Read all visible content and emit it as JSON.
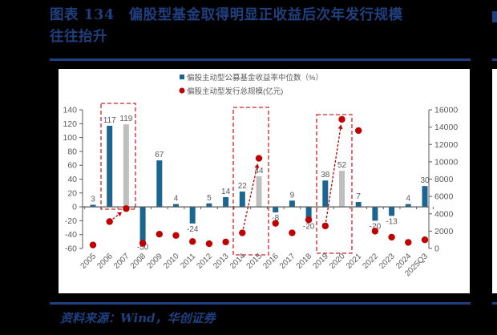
{
  "figure": {
    "title_line1": "图表 134　偏股型基金取得明显正收益后次年发行规模",
    "title_line2": "往往抬升",
    "source": "资料来源：Wind，华创证券"
  },
  "colors": {
    "bar_primary": "#1b6690",
    "bar_highlight": "#bfbfbf",
    "dot": "#c00000",
    "title": "#1f3f7f",
    "axis": "#595959",
    "box": "#d0202a"
  },
  "chart_data": {
    "type": "bar",
    "title": "偏股型基金取得明显正收益后次年发行规模往往抬升",
    "categories": [
      "2005",
      "2006",
      "2007",
      "2008",
      "2009",
      "2010",
      "2011",
      "2012",
      "2013",
      "2014",
      "2015",
      "2016",
      "2017",
      "2018",
      "2019",
      "2020",
      "2021",
      "2022",
      "2023",
      "2024",
      "2025Q3"
    ],
    "series": [
      {
        "name": "偏股主动型公募基金收益率中位数（%）",
        "type": "bar",
        "axis": "left",
        "values": [
          3,
          117,
          119,
          -50,
          67,
          4,
          -24,
          5,
          14,
          22,
          44,
          -8,
          9,
          -20,
          38,
          52,
          7,
          -20,
          -13,
          4,
          30
        ],
        "highlight_indices": [
          2,
          10,
          15
        ]
      },
      {
        "name": "偏股主动型发行总规模(亿元)",
        "type": "scatter",
        "axis": "right",
        "values": [
          400,
          3100,
          4600,
          600,
          1650,
          1500,
          800,
          550,
          750,
          1800,
          10400,
          2900,
          1800,
          3300,
          2600,
          14900,
          13600,
          2000,
          1300,
          700,
          1000
        ]
      }
    ],
    "left_axis": {
      "ylim": [
        -60,
        140
      ],
      "ticks": [
        "140",
        "120",
        "100",
        "80",
        "60",
        "40",
        "20",
        "0",
        "-20",
        "-40",
        "-60"
      ]
    },
    "right_axis": {
      "ylim": [
        0,
        16000
      ],
      "ticks": [
        "16000",
        "14000",
        "12000",
        "10000",
        "8000",
        "6000",
        "4000",
        "2000",
        "0"
      ]
    },
    "legend": [
      "偏股主动型公募基金收益率中位数（%）",
      "偏股主动型发行总规模(亿元)"
    ],
    "legend_position": "top",
    "grid": false,
    "annotations": [
      {
        "type": "dashed-box",
        "categories": [
          "2006",
          "2007"
        ]
      },
      {
        "type": "dashed-box",
        "categories": [
          "2014",
          "2015"
        ]
      },
      {
        "type": "dashed-box",
        "categories": [
          "2019",
          "2020"
        ]
      },
      {
        "type": "arrow",
        "from": "2006",
        "to": "2007"
      },
      {
        "type": "arrow",
        "from": "2014",
        "to": "2015"
      },
      {
        "type": "arrow",
        "from": "2019",
        "to": "2020"
      }
    ]
  }
}
